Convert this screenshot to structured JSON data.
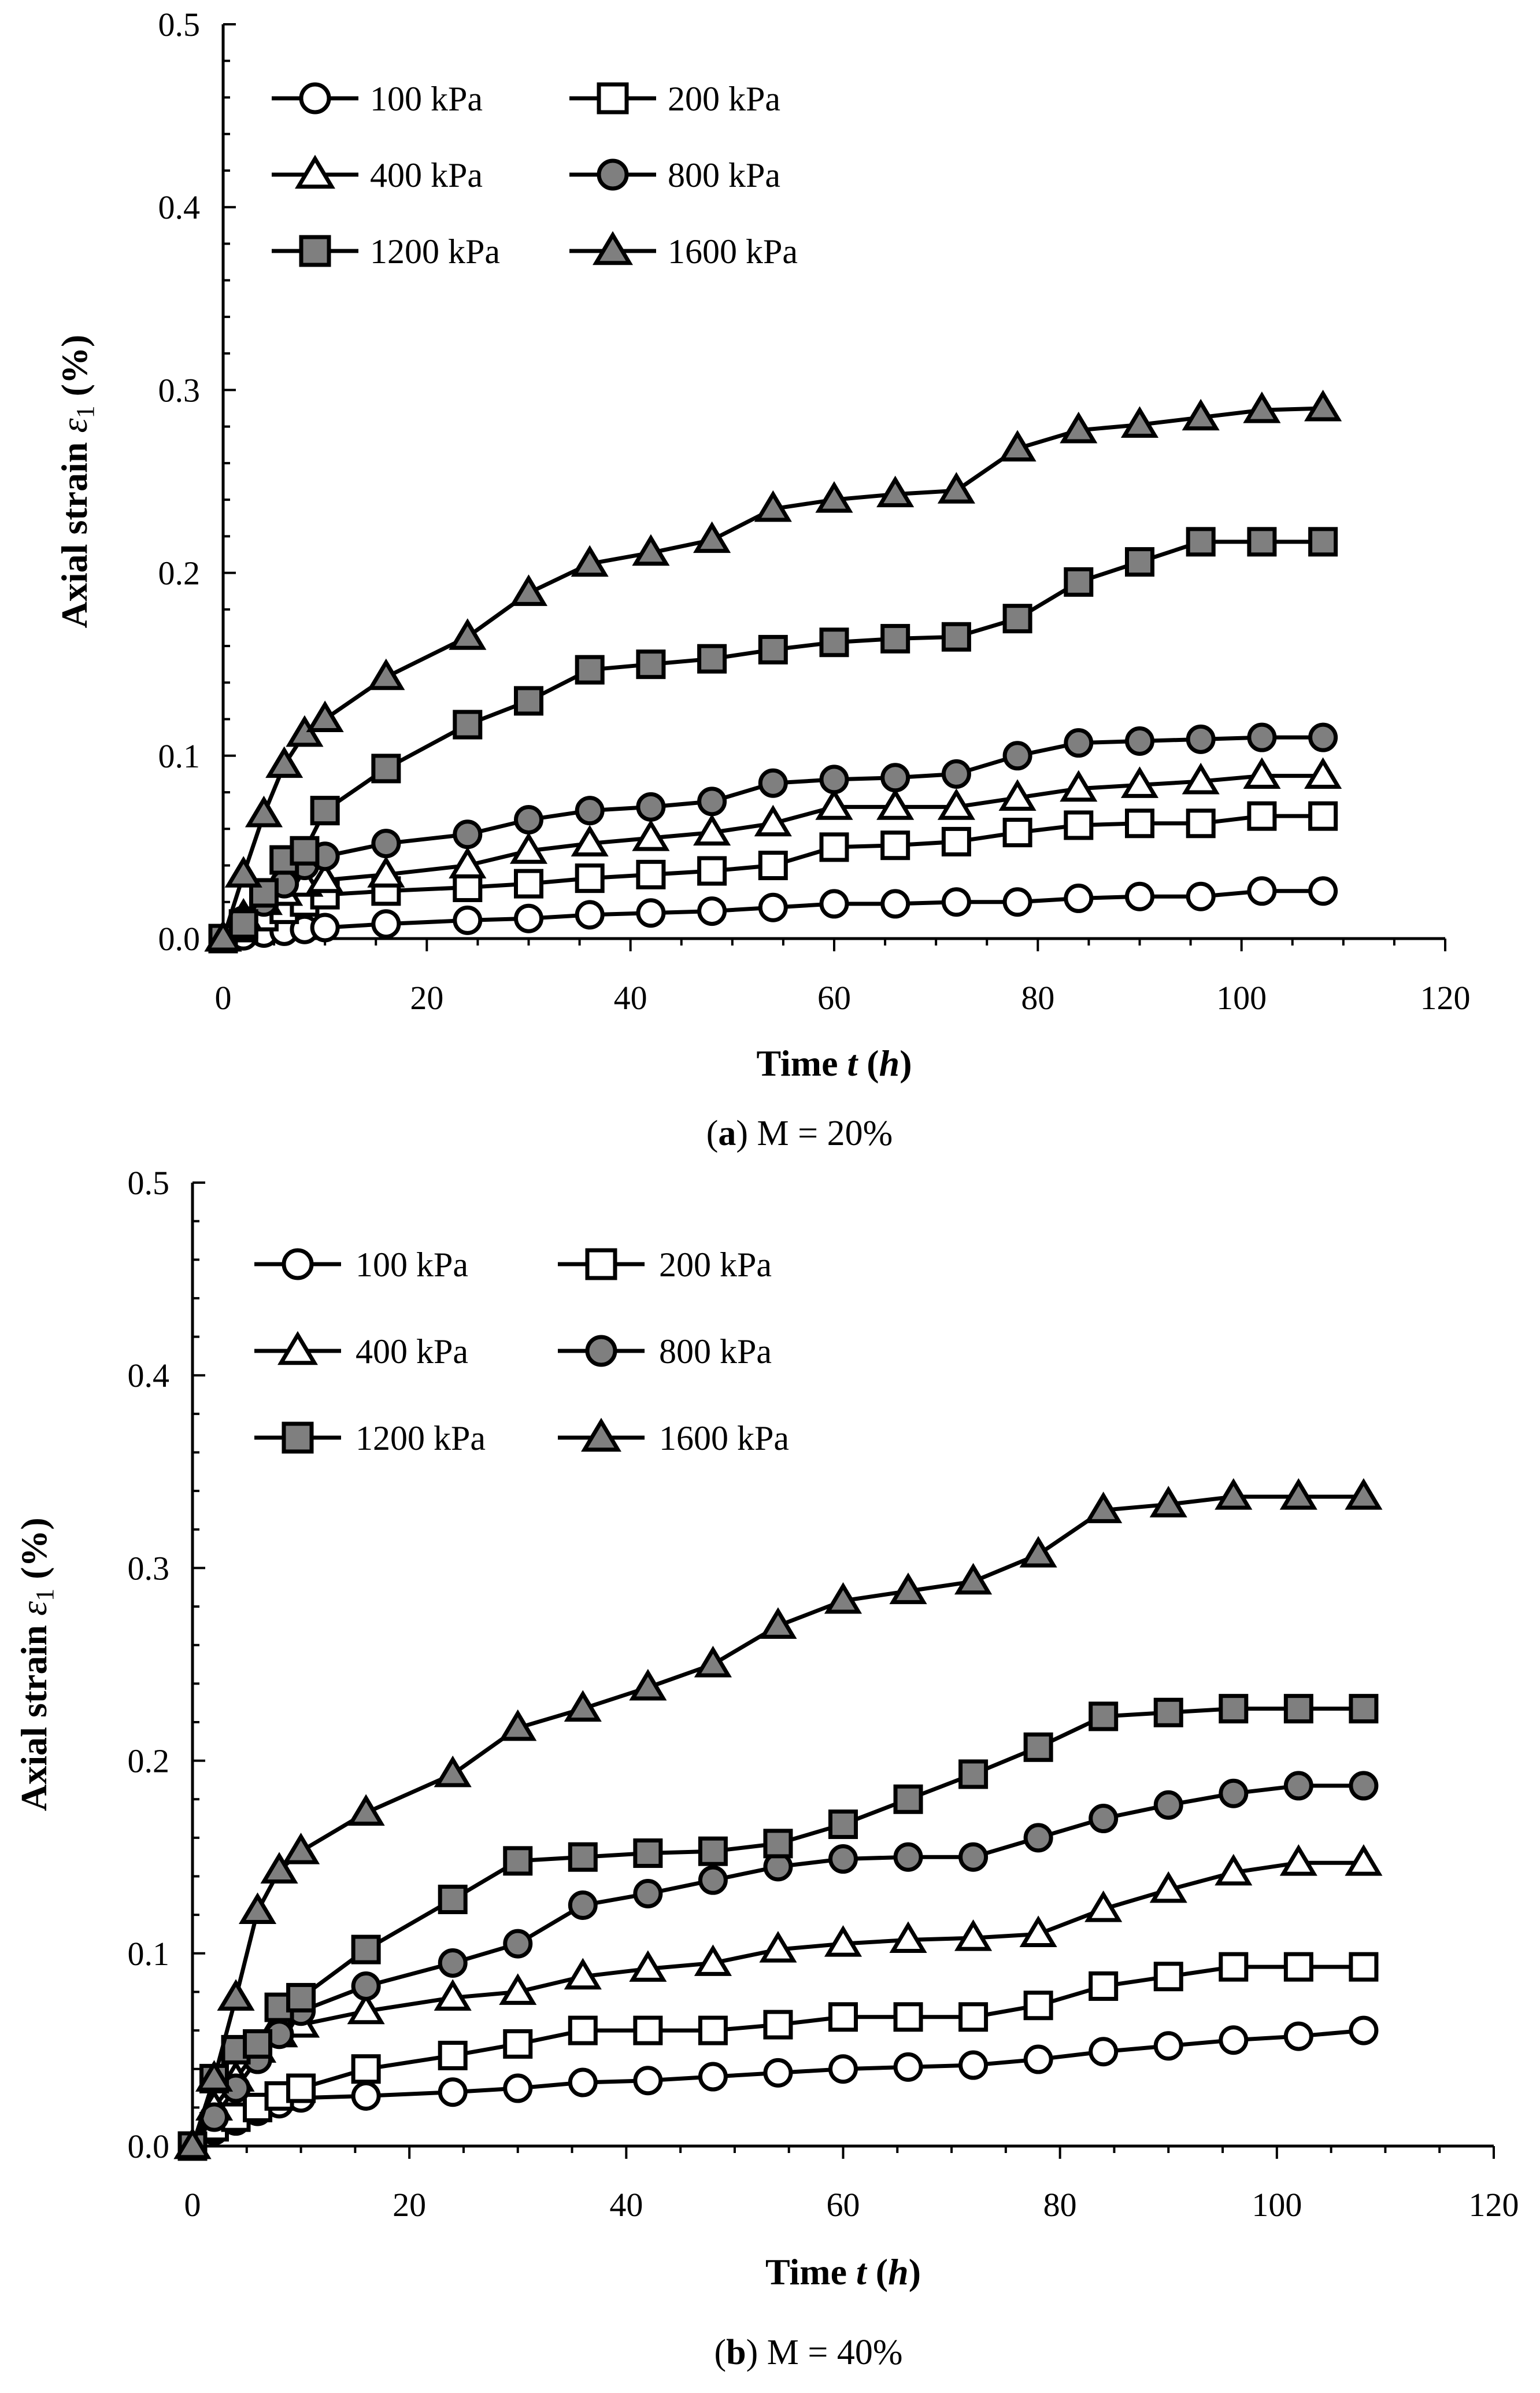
{
  "chart_data": [
    {
      "type": "line",
      "caption_label": "a",
      "caption_rest": ") M = 20%",
      "xlabel": "Time",
      "xlabel_var": "t",
      "xlabel_unit": "h",
      "ylabel": "Axial strain",
      "ylabel_var": "ε",
      "ylabel_sub": "1",
      "ylabel_unit": "(%)",
      "xlim": [
        0,
        120
      ],
      "ylim": [
        0,
        0.5
      ],
      "xticks": [
        "0",
        "20",
        "40",
        "60",
        "80",
        "100",
        "120"
      ],
      "yticks": [
        "0.0",
        "0.1",
        "0.2",
        "0.3",
        "0.4",
        "0.5"
      ],
      "grid": false,
      "legend_position": "top-left",
      "x": [
        0,
        2,
        4,
        6,
        8,
        10,
        16,
        24,
        30,
        36,
        42,
        48,
        54,
        60,
        66,
        72,
        78,
        84,
        90,
        96,
        102,
        108
      ],
      "series": [
        {
          "name": "100 kPa",
          "marker": "circle",
          "fill": "#ffffff",
          "values": [
            0,
            0.0015,
            0.003,
            0.004,
            0.005,
            0.006,
            0.008,
            0.01,
            0.011,
            0.013,
            0.014,
            0.015,
            0.017,
            0.019,
            0.019,
            0.02,
            0.02,
            0.022,
            0.023,
            0.023,
            0.026,
            0.026
          ]
        },
        {
          "name": "200 kPa",
          "marker": "square",
          "fill": "#ffffff",
          "values": [
            0,
            0.006,
            0.012,
            0.016,
            0.02,
            0.024,
            0.026,
            0.028,
            0.03,
            0.033,
            0.035,
            0.037,
            0.04,
            0.05,
            0.051,
            0.053,
            0.058,
            0.062,
            0.063,
            0.063,
            0.067,
            0.067
          ]
        },
        {
          "name": "400 kPa",
          "marker": "triangle",
          "fill": "#ffffff",
          "values": [
            0,
            0.012,
            0.02,
            0.025,
            0.03,
            0.032,
            0.035,
            0.04,
            0.048,
            0.052,
            0.055,
            0.058,
            0.063,
            0.072,
            0.072,
            0.072,
            0.077,
            0.082,
            0.084,
            0.086,
            0.089,
            0.089
          ]
        },
        {
          "name": "800 kPa",
          "marker": "circle",
          "fill": "#7f7f7f",
          "values": [
            0,
            0.01,
            0.02,
            0.03,
            0.04,
            0.045,
            0.052,
            0.057,
            0.065,
            0.07,
            0.072,
            0.075,
            0.085,
            0.087,
            0.088,
            0.09,
            0.1,
            0.107,
            0.108,
            0.109,
            0.11,
            0.11
          ]
        },
        {
          "name": "1200 kPa",
          "marker": "square",
          "fill": "#7f7f7f",
          "values": [
            0,
            0.008,
            0.025,
            0.043,
            0.048,
            0.07,
            0.093,
            0.117,
            0.13,
            0.147,
            0.15,
            0.153,
            0.158,
            0.162,
            0.164,
            0.165,
            0.175,
            0.195,
            0.206,
            0.217,
            0.217,
            0.217
          ]
        },
        {
          "name": "1600 kPa",
          "marker": "triangle",
          "fill": "#7f7f7f",
          "values": [
            0,
            0.035,
            0.068,
            0.095,
            0.112,
            0.12,
            0.143,
            0.165,
            0.189,
            0.205,
            0.211,
            0.218,
            0.235,
            0.24,
            0.243,
            0.245,
            0.268,
            0.278,
            0.281,
            0.285,
            0.289,
            0.29
          ]
        }
      ]
    },
    {
      "type": "line",
      "caption_label": "b",
      "caption_rest": ") M = 40%",
      "xlabel": "Time",
      "xlabel_var": "t",
      "xlabel_unit": "h",
      "ylabel": "Axial strain",
      "ylabel_var": "ε",
      "ylabel_sub": "1",
      "ylabel_unit": "(%)",
      "xlim": [
        0,
        120
      ],
      "ylim": [
        0,
        0.5
      ],
      "xticks": [
        "0",
        "20",
        "40",
        "60",
        "80",
        "100",
        "120"
      ],
      "yticks": [
        "0.0",
        "0.1",
        "0.2",
        "0.3",
        "0.4",
        "0.5"
      ],
      "grid": false,
      "legend_position": "top-left",
      "x": [
        0,
        2,
        4,
        6,
        8,
        10,
        16,
        24,
        30,
        36,
        42,
        48,
        54,
        60,
        66,
        72,
        78,
        84,
        90,
        96,
        102,
        108
      ],
      "series": [
        {
          "name": "100 kPa",
          "marker": "circle",
          "fill": "#ffffff",
          "values": [
            0,
            0.008,
            0.013,
            0.018,
            0.022,
            0.025,
            0.026,
            0.028,
            0.03,
            0.033,
            0.034,
            0.036,
            0.038,
            0.04,
            0.041,
            0.042,
            0.045,
            0.049,
            0.052,
            0.055,
            0.057,
            0.06
          ]
        },
        {
          "name": "200 kPa",
          "marker": "square",
          "fill": "#ffffff",
          "values": [
            0,
            0.01,
            0.015,
            0.02,
            0.026,
            0.03,
            0.04,
            0.047,
            0.053,
            0.06,
            0.06,
            0.06,
            0.063,
            0.067,
            0.067,
            0.067,
            0.073,
            0.083,
            0.088,
            0.093,
            0.093,
            0.093
          ]
        },
        {
          "name": "400 kPa",
          "marker": "triangle",
          "fill": "#ffffff",
          "values": [
            0,
            0.02,
            0.035,
            0.05,
            0.058,
            0.063,
            0.07,
            0.077,
            0.08,
            0.088,
            0.092,
            0.095,
            0.102,
            0.105,
            0.107,
            0.108,
            0.11,
            0.123,
            0.133,
            0.142,
            0.147,
            0.147
          ]
        },
        {
          "name": "800 kPa",
          "marker": "circle",
          "fill": "#7f7f7f",
          "values": [
            0,
            0.015,
            0.03,
            0.045,
            0.058,
            0.07,
            0.083,
            0.095,
            0.105,
            0.125,
            0.131,
            0.138,
            0.145,
            0.149,
            0.15,
            0.15,
            0.16,
            0.17,
            0.177,
            0.183,
            0.187,
            0.187
          ]
        },
        {
          "name": "1200 kPa",
          "marker": "square",
          "fill": "#7f7f7f",
          "values": [
            0,
            0.035,
            0.05,
            0.053,
            0.072,
            0.077,
            0.102,
            0.128,
            0.148,
            0.15,
            0.152,
            0.153,
            0.157,
            0.167,
            0.18,
            0.193,
            0.207,
            0.223,
            0.225,
            0.227,
            0.227,
            0.227
          ]
        },
        {
          "name": "1600 kPa",
          "marker": "triangle",
          "fill": "#7f7f7f",
          "values": [
            0,
            0.035,
            0.077,
            0.122,
            0.143,
            0.153,
            0.173,
            0.193,
            0.217,
            0.227,
            0.238,
            0.25,
            0.27,
            0.283,
            0.288,
            0.293,
            0.307,
            0.33,
            0.333,
            0.337,
            0.337,
            0.337
          ]
        }
      ]
    }
  ]
}
